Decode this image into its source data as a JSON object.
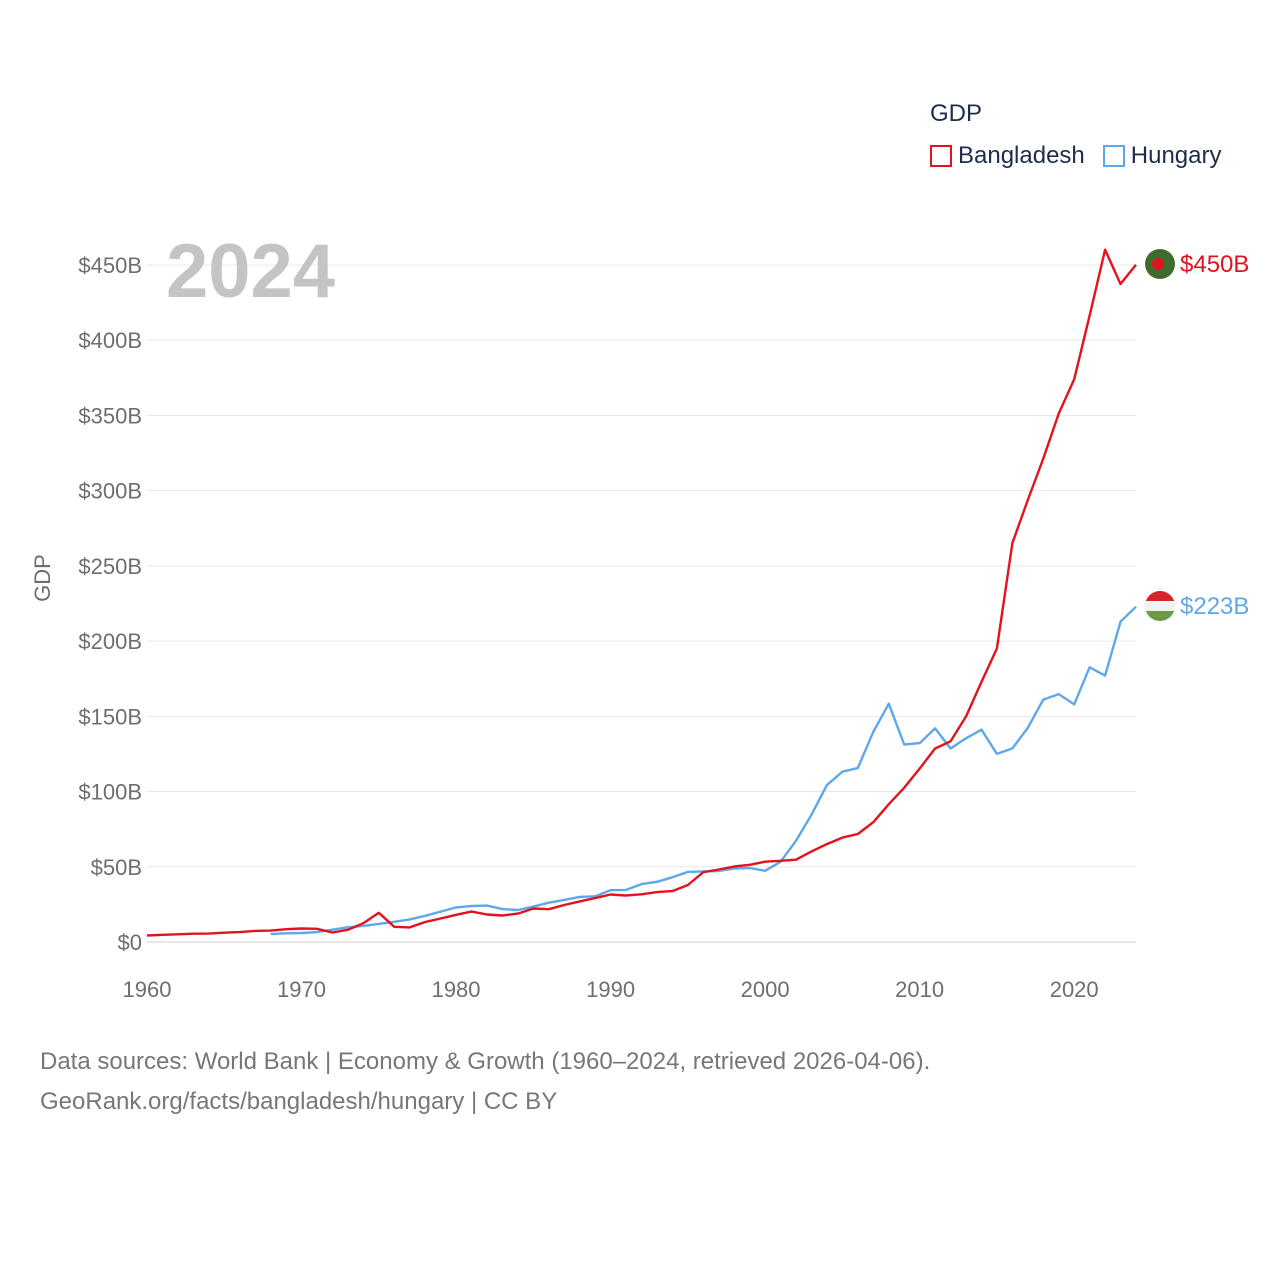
{
  "chart_data": {
    "type": "line",
    "legend_title": "GDP",
    "ylabel": "GDP",
    "xlabel": "",
    "year_label": "2024",
    "xlim": [
      1960,
      2024
    ],
    "ylim": [
      0,
      450
    ],
    "x_ticks": [
      1960,
      1970,
      1980,
      1990,
      2000,
      2010,
      2020
    ],
    "x_tick_labels": [
      "1960",
      "1970",
      "1980",
      "1990",
      "2000",
      "2010",
      "2020"
    ],
    "y_ticks": [
      0,
      50,
      100,
      150,
      200,
      250,
      300,
      350,
      400,
      450
    ],
    "y_tick_labels": [
      "$0",
      "$50B",
      "$100B",
      "$150B",
      "$200B",
      "$250B",
      "$300B",
      "$350B",
      "$400B",
      "$450B"
    ],
    "grid": true,
    "legend_position": "top-right",
    "series": [
      {
        "name": "Bangladesh",
        "color": "#e3121c",
        "end_label": "$450B",
        "flag": "bangladesh",
        "start_year": 1960,
        "values": [
          4.3,
          4.8,
          5.1,
          5.5,
          5.6,
          6.2,
          6.6,
          7.4,
          7.6,
          8.5,
          9.0,
          8.8,
          6.3,
          8.1,
          12.5,
          19.4,
          10.1,
          9.7,
          13.3,
          15.6,
          18.1,
          20.2,
          18.3,
          17.6,
          18.9,
          22.3,
          21.8,
          24.6,
          27.0,
          29.2,
          31.6,
          30.9,
          31.7,
          33.2,
          33.8,
          37.9,
          46.4,
          48.2,
          50.2,
          51.3,
          53.4,
          54.0,
          54.7,
          60.2,
          65.1,
          69.4,
          71.8,
          79.6,
          91.6,
          102.5,
          115.3,
          128.6,
          133.4,
          149.9,
          172.9,
          195.1,
          265.2,
          293.8,
          321.4,
          351.2,
          374.0,
          416.3,
          460.2,
          437.4,
          450.1
        ]
      },
      {
        "name": "Hungary",
        "color": "#5fa8e8",
        "end_label": "$223B",
        "flag": "hungary",
        "start_year": 1968,
        "values": [
          5.4,
          5.8,
          6.0,
          6.6,
          8.2,
          9.8,
          10.7,
          12.0,
          13.4,
          15.0,
          17.4,
          20.2,
          23.0,
          23.9,
          24.2,
          21.9,
          21.3,
          23.5,
          26.1,
          28.0,
          30.0,
          30.4,
          34.4,
          34.6,
          38.5,
          40.0,
          43.0,
          46.6,
          46.9,
          47.2,
          48.8,
          49.2,
          47.3,
          53.4,
          67.3,
          84.6,
          104.3,
          113.2,
          115.6,
          139.7,
          158.4,
          131.3,
          132.2,
          142.0,
          128.6,
          135.4,
          141.1,
          125.0,
          128.7,
          142.4,
          161.1,
          164.8,
          157.9,
          182.6,
          177.1,
          212.9,
          222.9
        ]
      }
    ]
  },
  "source_line1": "Data sources: World Bank | Economy & Growth (1960–2024, retrieved 2026-04-06).",
  "source_line2": "GeoRank.org/facts/bangladesh/hungary | CC BY"
}
